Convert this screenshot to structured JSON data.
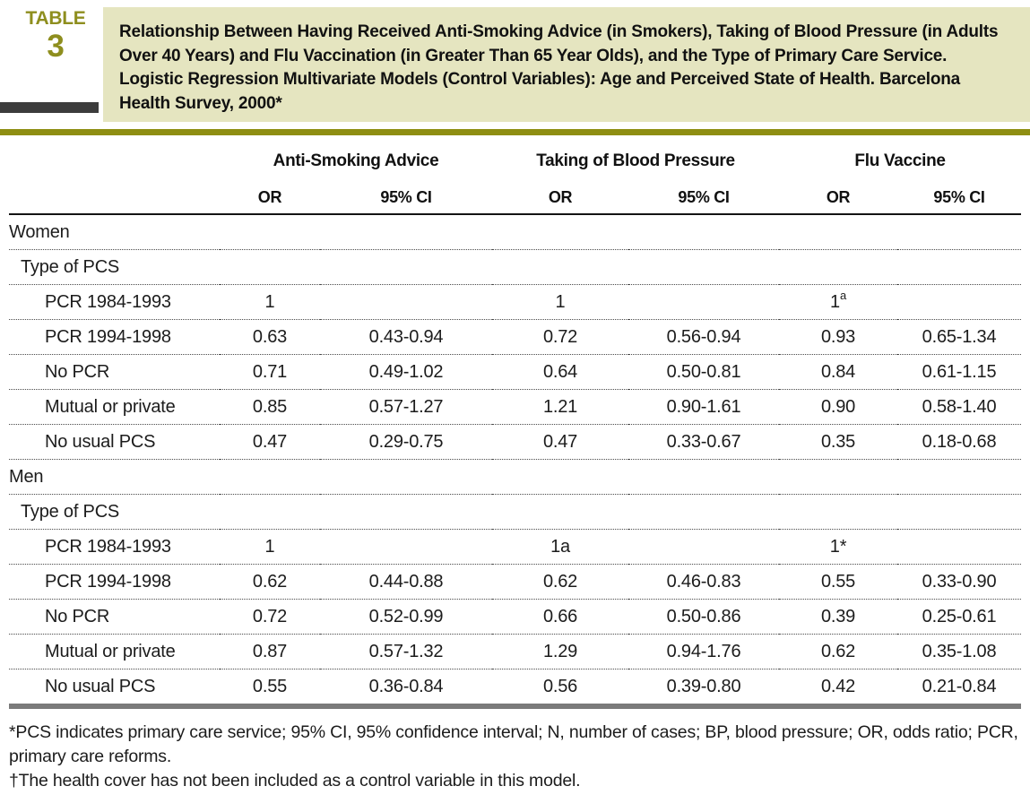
{
  "label": {
    "word": "TABLE",
    "number": "3"
  },
  "title": "Relationship Between Having Received Anti-Smoking Advice (in Smokers), Taking of Blood Pressure (in Adults Over 40 Years) and Flu Vaccination (in Greater Than 65 Year Olds), and the Type of Primary Care Service. Logistic Regression Multivariate Models (Control Variables): Age and Perceived State of Health. Barcelona Health Survey, 2000*",
  "columns": {
    "groups": [
      {
        "label": "Anti-Smoking Advice"
      },
      {
        "label": "Taking of Blood Pressure"
      },
      {
        "label": "Flu Vaccine"
      }
    ],
    "subheaders": [
      "OR",
      "95% CI",
      "OR",
      "95% CI",
      "OR",
      "95% CI"
    ]
  },
  "rows": [
    {
      "label": "Women",
      "indent": 0,
      "cells": [
        "",
        "",
        "",
        "",
        "",
        ""
      ]
    },
    {
      "label": "Type of PCS",
      "indent": 1,
      "cells": [
        "",
        "",
        "",
        "",
        "",
        ""
      ]
    },
    {
      "label": "PCR 1984-1993",
      "indent": 2,
      "cells": [
        "1",
        "",
        "1",
        "",
        "1^a",
        ""
      ]
    },
    {
      "label": "PCR 1994-1998",
      "indent": 2,
      "cells": [
        "0.63",
        "0.43-0.94",
        "0.72",
        "0.56-0.94",
        "0.93",
        "0.65-1.34"
      ]
    },
    {
      "label": "No PCR",
      "indent": 2,
      "cells": [
        "0.71",
        "0.49-1.02",
        "0.64",
        "0.50-0.81",
        "0.84",
        "0.61-1.15"
      ]
    },
    {
      "label": "Mutual or private",
      "indent": 2,
      "cells": [
        "0.85",
        "0.57-1.27",
        "1.21",
        "0.90-1.61",
        "0.90",
        "0.58-1.40"
      ]
    },
    {
      "label": "No usual PCS",
      "indent": 2,
      "cells": [
        "0.47",
        "0.29-0.75",
        "0.47",
        "0.33-0.67",
        "0.35",
        "0.18-0.68"
      ]
    },
    {
      "label": "Men",
      "indent": 0,
      "cells": [
        "",
        "",
        "",
        "",
        "",
        ""
      ]
    },
    {
      "label": "Type of PCS",
      "indent": 1,
      "cells": [
        "",
        "",
        "",
        "",
        "",
        ""
      ]
    },
    {
      "label": "PCR 1984-1993",
      "indent": 2,
      "cells": [
        "1",
        "",
        "1a",
        "",
        "1*",
        ""
      ]
    },
    {
      "label": "PCR 1994-1998",
      "indent": 2,
      "cells": [
        "0.62",
        "0.44-0.88",
        "0.62",
        "0.46-0.83",
        "0.55",
        "0.33-0.90"
      ]
    },
    {
      "label": "No PCR",
      "indent": 2,
      "cells": [
        "0.72",
        "0.52-0.99",
        "0.66",
        "0.50-0.86",
        "0.39",
        "0.25-0.61"
      ]
    },
    {
      "label": "Mutual or private",
      "indent": 2,
      "cells": [
        "0.87",
        "0.57-1.32",
        "1.29",
        "0.94-1.76",
        "0.62",
        "0.35-1.08"
      ]
    },
    {
      "label": "No usual PCS",
      "indent": 2,
      "cells": [
        "0.55",
        "0.36-0.84",
        "0.56",
        "0.39-0.80",
        "0.42",
        "0.21-0.84"
      ]
    }
  ],
  "footnotes": [
    "*PCS indicates primary care service; 95% CI, 95% confidence interval; N, number of cases; BP, blood pressure; OR, odds ratio; PCR, primary care reforms.",
    "†The health cover has not been included as a control variable in this model."
  ],
  "colors": {
    "accent_olive": "#8e8e1e",
    "olive_rule": "#8e8e12",
    "title_band_bg": "#e5e5c0",
    "gray_tab": "#3c3c3c",
    "bottom_rule_gray": "#7b7b7b"
  }
}
